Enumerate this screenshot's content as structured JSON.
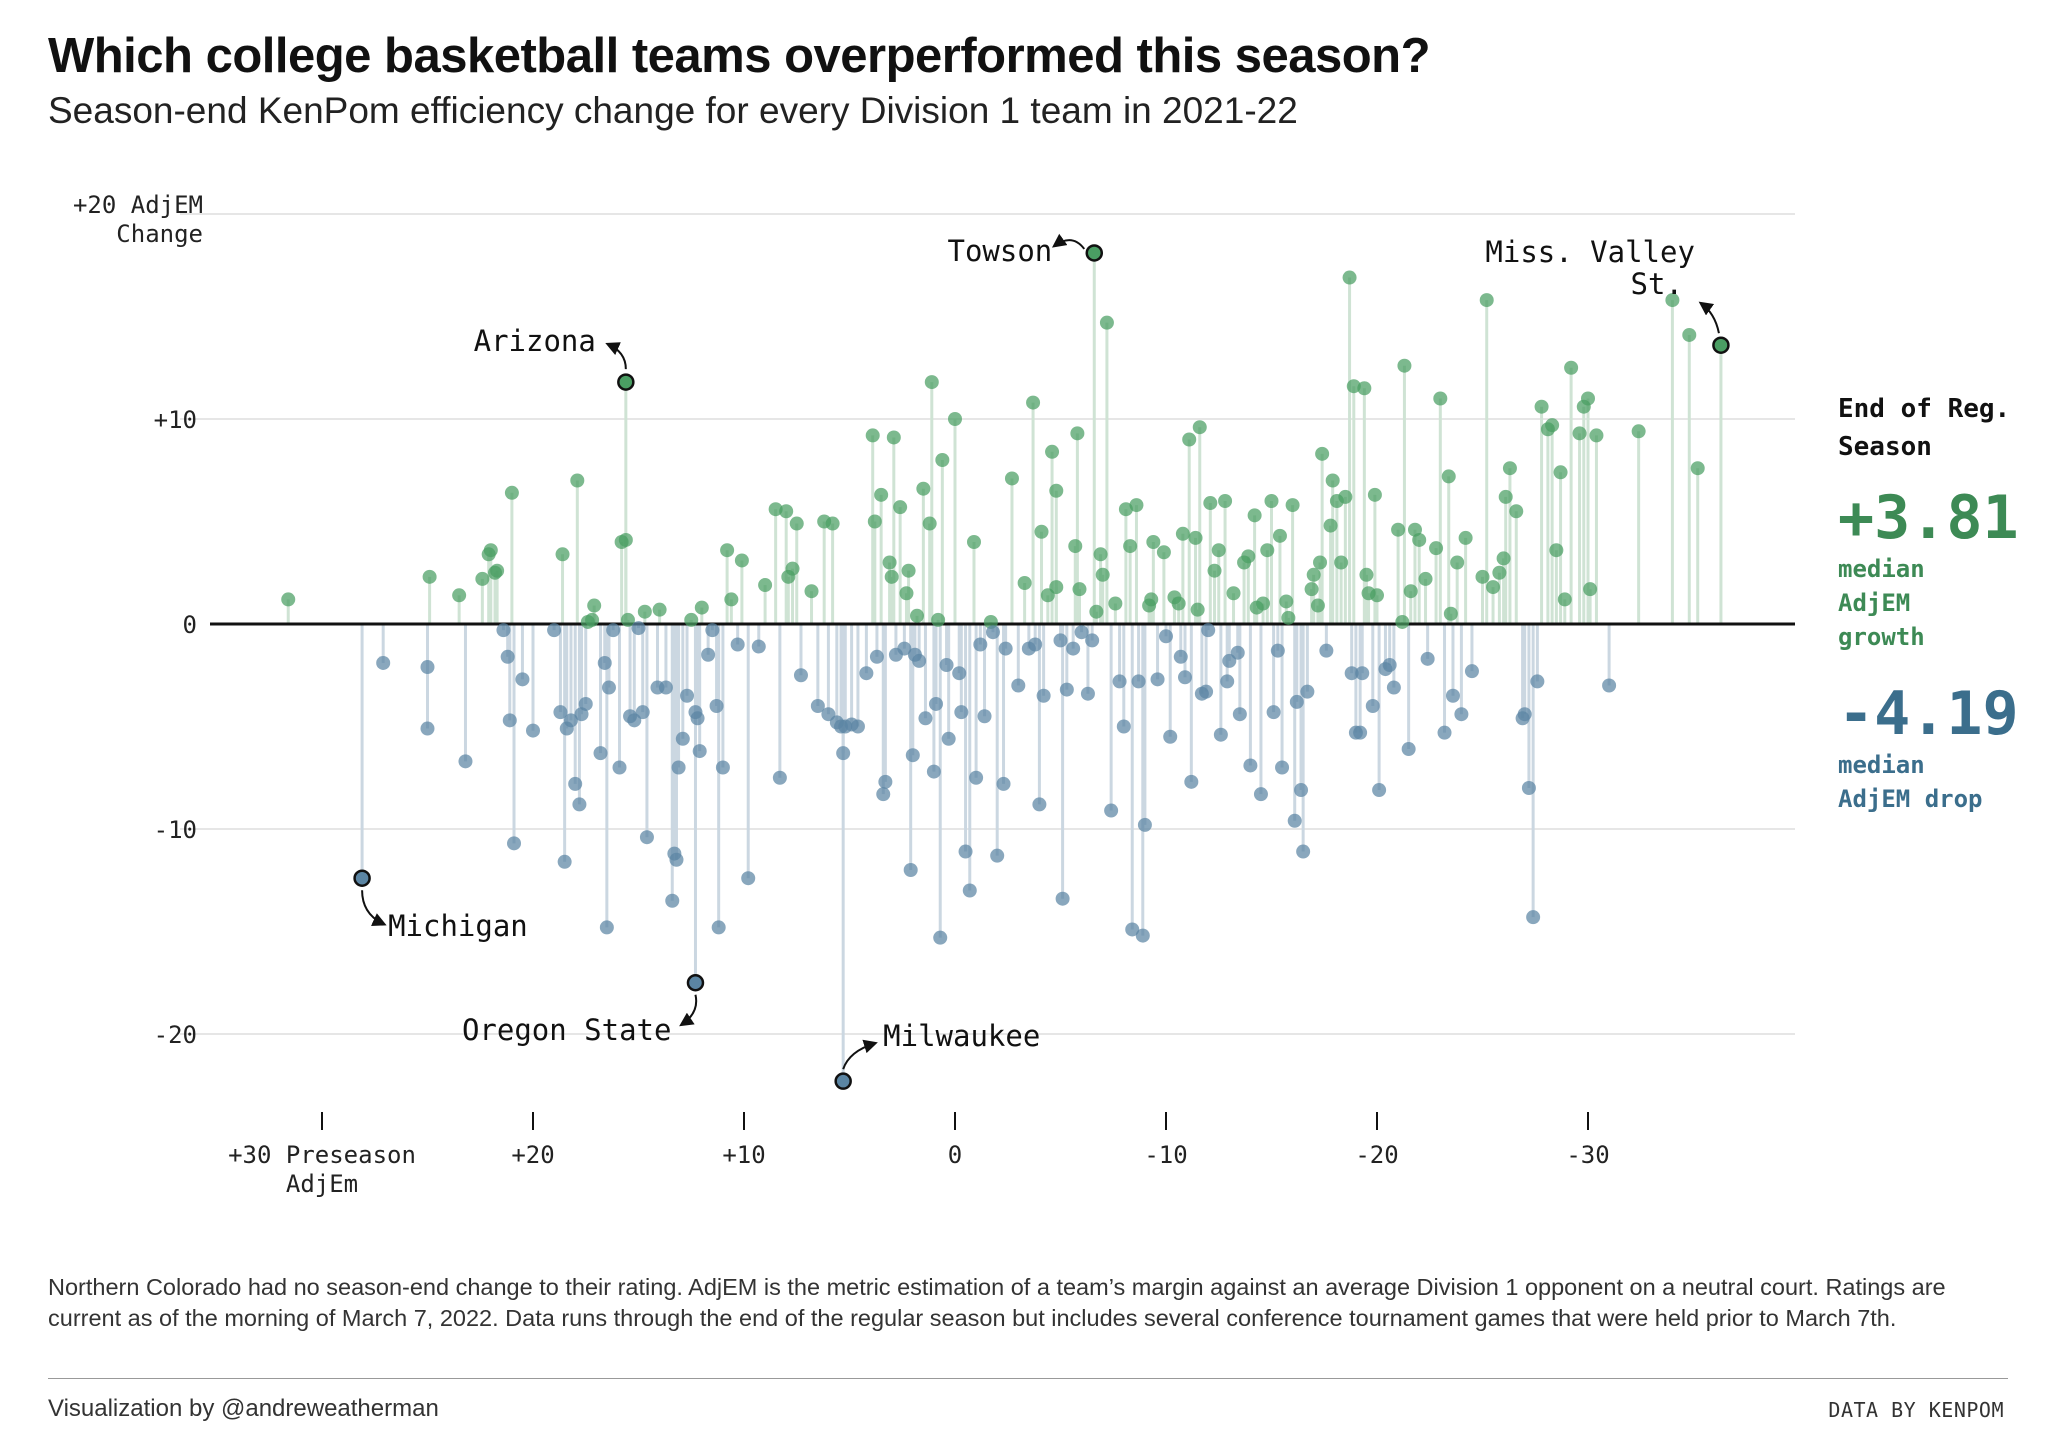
{
  "title": "Which college basketball teams overperformed this season?",
  "subtitle": "Season-end KenPom efficiency change for every Division 1 team in 2021-22",
  "colors": {
    "growth": "#4a9e63",
    "drop": "#5b85a3",
    "growth_stem": "#cfe3d4",
    "drop_stem": "#cbd7e1",
    "label_growth": "#3d8a55",
    "label_drop": "#3b6e8c"
  },
  "side_panel": {
    "heading": "End of Reg. Season",
    "growth_value": "+3.81",
    "growth_label": "median AdjEM growth",
    "drop_value": "-4.19",
    "drop_label": "median AdjEM drop"
  },
  "footnote": "Northern Colorado had no season-end change to their rating. AdjEM is the metric estimation of a team’s margin against an average Division 1 opponent on a neutral court. Ratings are current as of the morning of March 7, 2022.  Data runs through the end of the regular season but includes several conference tournament games that were held prior to March 7th.",
  "credit": "Visualization by @andreweatherman",
  "source": "DATA BY KENPOM",
  "chart_data": {
    "type": "scatter",
    "x_axis": {
      "label": "Preseason AdjEm",
      "range": [
        36,
        -37
      ],
      "reversed": true,
      "ticks": [
        {
          "value": 30,
          "label": "+30 Preseason AdjEm"
        },
        {
          "value": 20,
          "label": "+20"
        },
        {
          "value": 10,
          "label": "+10"
        },
        {
          "value": 0,
          "label": "0"
        },
        {
          "value": -10,
          "label": "-10"
        },
        {
          "value": -20,
          "label": "-20"
        },
        {
          "value": -30,
          "label": "-30"
        }
      ]
    },
    "y_axis": {
      "label": "AdjEM Change",
      "range": [
        -24,
        21
      ],
      "ticks": [
        {
          "value": 20,
          "label": "+20 AdjEM Change"
        },
        {
          "value": 10,
          "label": "+10"
        },
        {
          "value": 0,
          "label": "0"
        },
        {
          "value": -10,
          "label": "-10"
        },
        {
          "value": -20,
          "label": "-20"
        }
      ]
    },
    "grid": true,
    "highlighted": [
      {
        "name": "Towson",
        "x": -6.6,
        "y": 18.1
      },
      {
        "name": "Miss. Valley St.",
        "x": -36.3,
        "y": 13.6
      },
      {
        "name": "Arizona",
        "x": 15.6,
        "y": 11.8
      },
      {
        "name": "Michigan",
        "x": 28.1,
        "y": -12.4
      },
      {
        "name": "Oregon State",
        "x": 12.3,
        "y": -17.5
      },
      {
        "name": "Milwaukee",
        "x": 5.3,
        "y": -22.3
      }
    ],
    "points": [
      [
        31.6,
        1.2
      ],
      [
        27.1,
        -1.9
      ],
      [
        25.0,
        -2.1
      ],
      [
        25.0,
        -5.1
      ],
      [
        24.9,
        2.3
      ],
      [
        23.5,
        1.4
      ],
      [
        23.2,
        -6.7
      ],
      [
        22.4,
        2.2
      ],
      [
        22.1,
        3.4
      ],
      [
        22.0,
        3.6
      ],
      [
        21.8,
        2.5
      ],
      [
        21.7,
        2.6
      ],
      [
        21.4,
        -0.3
      ],
      [
        21.2,
        -1.6
      ],
      [
        21.1,
        -4.7
      ],
      [
        21.0,
        6.4
      ],
      [
        20.9,
        -10.7
      ],
      [
        20.5,
        -2.7
      ],
      [
        20.0,
        -5.2
      ],
      [
        19.0,
        -0.3
      ],
      [
        18.7,
        -4.3
      ],
      [
        18.6,
        3.4
      ],
      [
        18.5,
        -11.6
      ],
      [
        18.4,
        -5.1
      ],
      [
        18.2,
        -4.7
      ],
      [
        17.9,
        7.0
      ],
      [
        18.0,
        -7.8
      ],
      [
        17.8,
        -8.8
      ],
      [
        17.7,
        -4.4
      ],
      [
        17.5,
        -3.9
      ],
      [
        17.4,
        0.1
      ],
      [
        17.2,
        0.2
      ],
      [
        17.1,
        0.9
      ],
      [
        16.8,
        -6.3
      ],
      [
        16.6,
        -1.9
      ],
      [
        16.5,
        -14.8
      ],
      [
        16.4,
        -3.1
      ],
      [
        16.2,
        -0.3
      ],
      [
        15.9,
        -7.0
      ],
      [
        15.8,
        4.0
      ],
      [
        15.6,
        4.1
      ],
      [
        15.5,
        0.2
      ],
      [
        15.4,
        -4.5
      ],
      [
        15.2,
        -4.7
      ],
      [
        15.0,
        -0.2
      ],
      [
        14.8,
        -4.3
      ],
      [
        14.7,
        0.6
      ],
      [
        14.6,
        -10.4
      ],
      [
        14.1,
        -3.1
      ],
      [
        14.0,
        0.7
      ],
      [
        13.7,
        -3.1
      ],
      [
        13.4,
        -13.5
      ],
      [
        13.3,
        -11.2
      ],
      [
        13.2,
        -11.5
      ],
      [
        13.1,
        -7.0
      ],
      [
        12.9,
        -5.6
      ],
      [
        12.7,
        -3.5
      ],
      [
        12.5,
        0.2
      ],
      [
        12.3,
        -4.3
      ],
      [
        12.2,
        -4.6
      ],
      [
        12.1,
        -6.2
      ],
      [
        12.0,
        0.8
      ],
      [
        11.7,
        -1.5
      ],
      [
        11.5,
        -0.3
      ],
      [
        11.3,
        -4.0
      ],
      [
        11.2,
        -14.8
      ],
      [
        11.0,
        -7.0
      ],
      [
        10.8,
        3.6
      ],
      [
        10.6,
        1.2
      ],
      [
        10.3,
        -1.0
      ],
      [
        10.1,
        3.1
      ],
      [
        9.8,
        -12.4
      ],
      [
        9.3,
        -1.1
      ],
      [
        9.0,
        1.9
      ],
      [
        8.5,
        5.6
      ],
      [
        8.3,
        -7.5
      ],
      [
        8.0,
        5.5
      ],
      [
        7.9,
        2.3
      ],
      [
        7.7,
        2.7
      ],
      [
        7.5,
        4.9
      ],
      [
        7.3,
        -2.5
      ],
      [
        6.8,
        1.6
      ],
      [
        6.5,
        -4.0
      ],
      [
        6.2,
        5.0
      ],
      [
        6.0,
        -4.4
      ],
      [
        5.8,
        4.9
      ],
      [
        5.6,
        -4.8
      ],
      [
        5.4,
        -5.0
      ],
      [
        5.3,
        -6.3
      ],
      [
        5.2,
        -5.0
      ],
      [
        4.9,
        -4.9
      ],
      [
        4.6,
        -5.0
      ],
      [
        4.2,
        -2.4
      ],
      [
        3.9,
        9.2
      ],
      [
        3.8,
        5.0
      ],
      [
        3.7,
        -1.6
      ],
      [
        3.5,
        6.3
      ],
      [
        3.4,
        -8.3
      ],
      [
        3.3,
        -7.7
      ],
      [
        3.1,
        3.0
      ],
      [
        3.0,
        2.3
      ],
      [
        2.9,
        9.1
      ],
      [
        2.8,
        -1.5
      ],
      [
        2.6,
        5.7
      ],
      [
        2.4,
        -1.2
      ],
      [
        2.3,
        1.5
      ],
      [
        2.2,
        2.6
      ],
      [
        2.1,
        -12.0
      ],
      [
        2.0,
        -6.4
      ],
      [
        1.9,
        -1.5
      ],
      [
        1.8,
        0.4
      ],
      [
        1.7,
        -1.8
      ],
      [
        1.5,
        6.6
      ],
      [
        1.4,
        -4.6
      ],
      [
        1.2,
        4.9
      ],
      [
        1.1,
        11.8
      ],
      [
        1.0,
        -7.2
      ],
      [
        0.9,
        -3.9
      ],
      [
        0.8,
        0.2
      ],
      [
        0.7,
        -15.3
      ],
      [
        0.6,
        8.0
      ],
      [
        0.4,
        -2.0
      ],
      [
        0.3,
        -5.6
      ],
      [
        0.0,
        10.0
      ],
      [
        -0.2,
        -2.4
      ],
      [
        -0.3,
        -4.3
      ],
      [
        -0.5,
        -11.1
      ],
      [
        -0.7,
        -13.0
      ],
      [
        -0.9,
        4.0
      ],
      [
        -1.0,
        -7.5
      ],
      [
        -1.2,
        -1.0
      ],
      [
        -1.4,
        -4.5
      ],
      [
        -1.7,
        0.1
      ],
      [
        -1.8,
        -0.4
      ],
      [
        -2.0,
        -11.3
      ],
      [
        -2.3,
        -7.8
      ],
      [
        -2.4,
        -1.2
      ],
      [
        -2.7,
        7.1
      ],
      [
        -3.0,
        -3.0
      ],
      [
        -3.3,
        2.0
      ],
      [
        -3.5,
        -1.2
      ],
      [
        -3.7,
        10.8
      ],
      [
        -3.8,
        -1.0
      ],
      [
        -4.0,
        -8.8
      ],
      [
        -4.1,
        4.5
      ],
      [
        -4.2,
        -3.5
      ],
      [
        -4.4,
        1.4
      ],
      [
        -4.6,
        8.4
      ],
      [
        -4.8,
        1.8
      ],
      [
        -4.8,
        6.5
      ],
      [
        -5.0,
        -0.8
      ],
      [
        -5.1,
        -13.4
      ],
      [
        -5.3,
        -3.2
      ],
      [
        -5.6,
        -1.2
      ],
      [
        -5.7,
        3.8
      ],
      [
        -5.8,
        9.3
      ],
      [
        -5.9,
        1.7
      ],
      [
        -6.0,
        -0.4
      ],
      [
        -6.3,
        -3.4
      ],
      [
        -6.5,
        -0.8
      ],
      [
        -6.7,
        0.6
      ],
      [
        -6.9,
        3.4
      ],
      [
        -7.0,
        2.4
      ],
      [
        -7.2,
        14.7
      ],
      [
        -7.4,
        -9.1
      ],
      [
        -7.6,
        1.0
      ],
      [
        -7.8,
        -2.8
      ],
      [
        -8.0,
        -5.0
      ],
      [
        -8.1,
        5.6
      ],
      [
        -8.3,
        3.8
      ],
      [
        -8.4,
        -14.9
      ],
      [
        -8.6,
        5.8
      ],
      [
        -8.7,
        -2.8
      ],
      [
        -8.9,
        -15.2
      ],
      [
        -9.0,
        -9.8
      ],
      [
        -9.2,
        0.9
      ],
      [
        -9.3,
        1.2
      ],
      [
        -9.4,
        4.0
      ],
      [
        -9.6,
        -2.7
      ],
      [
        -9.9,
        3.5
      ],
      [
        -10.0,
        -0.6
      ],
      [
        -10.2,
        -5.5
      ],
      [
        -10.4,
        1.3
      ],
      [
        -10.6,
        1.0
      ],
      [
        -10.7,
        -1.6
      ],
      [
        -10.8,
        4.4
      ],
      [
        -10.9,
        -2.6
      ],
      [
        -11.1,
        9.0
      ],
      [
        -11.2,
        -7.7
      ],
      [
        -11.4,
        4.2
      ],
      [
        -11.5,
        0.7
      ],
      [
        -11.6,
        9.6
      ],
      [
        -11.7,
        -3.4
      ],
      [
        -11.9,
        -3.3
      ],
      [
        -12.0,
        -0.3
      ],
      [
        -12.1,
        5.9
      ],
      [
        -12.3,
        2.6
      ],
      [
        -12.5,
        3.6
      ],
      [
        -12.6,
        -5.4
      ],
      [
        -12.8,
        6.0
      ],
      [
        -12.9,
        -2.8
      ],
      [
        -13.0,
        -1.8
      ],
      [
        -13.2,
        1.5
      ],
      [
        -13.4,
        -1.4
      ],
      [
        -13.5,
        -4.4
      ],
      [
        -13.7,
        3.0
      ],
      [
        -13.9,
        3.3
      ],
      [
        -14.0,
        -6.9
      ],
      [
        -14.2,
        5.3
      ],
      [
        -14.3,
        0.8
      ],
      [
        -14.5,
        -8.3
      ],
      [
        -14.6,
        1.0
      ],
      [
        -14.8,
        3.6
      ],
      [
        -15.0,
        6.0
      ],
      [
        -15.1,
        -4.3
      ],
      [
        -15.3,
        -1.3
      ],
      [
        -15.4,
        4.3
      ],
      [
        -15.5,
        -7.0
      ],
      [
        -15.7,
        1.1
      ],
      [
        -15.8,
        0.3
      ],
      [
        -16.0,
        5.8
      ],
      [
        -16.1,
        -9.6
      ],
      [
        -16.2,
        -3.8
      ],
      [
        -16.4,
        -8.1
      ],
      [
        -16.5,
        -11.1
      ],
      [
        -16.7,
        -3.3
      ],
      [
        -16.9,
        1.7
      ],
      [
        -17.0,
        2.4
      ],
      [
        -17.2,
        0.9
      ],
      [
        -17.3,
        3.0
      ],
      [
        -17.4,
        8.3
      ],
      [
        -17.6,
        -1.3
      ],
      [
        -17.8,
        4.8
      ],
      [
        -17.9,
        7.0
      ],
      [
        -18.1,
        6.0
      ],
      [
        -18.3,
        3.0
      ],
      [
        -18.5,
        6.2
      ],
      [
        -18.7,
        16.9
      ],
      [
        -18.8,
        -2.4
      ],
      [
        -18.9,
        11.6
      ],
      [
        -19.0,
        -5.3
      ],
      [
        -19.2,
        -5.3
      ],
      [
        -19.3,
        -2.4
      ],
      [
        -19.4,
        11.5
      ],
      [
        -19.5,
        2.4
      ],
      [
        -19.6,
        1.5
      ],
      [
        -19.8,
        -4.0
      ],
      [
        -19.9,
        6.3
      ],
      [
        -20.0,
        1.4
      ],
      [
        -20.1,
        -8.1
      ],
      [
        -20.4,
        -2.2
      ],
      [
        -20.6,
        -2.0
      ],
      [
        -20.8,
        -3.1
      ],
      [
        -21.0,
        4.6
      ],
      [
        -21.2,
        0.1
      ],
      [
        -21.3,
        12.6
      ],
      [
        -21.5,
        -6.1
      ],
      [
        -21.6,
        1.6
      ],
      [
        -21.8,
        4.6
      ],
      [
        -22.0,
        4.1
      ],
      [
        -22.3,
        2.2
      ],
      [
        -22.4,
        -1.7
      ],
      [
        -22.8,
        3.7
      ],
      [
        -23.0,
        11.0
      ],
      [
        -23.2,
        -5.3
      ],
      [
        -23.4,
        7.2
      ],
      [
        -23.5,
        0.5
      ],
      [
        -23.6,
        -3.5
      ],
      [
        -23.8,
        3.0
      ],
      [
        -24.0,
        -4.4
      ],
      [
        -24.2,
        4.2
      ],
      [
        -24.5,
        -2.3
      ],
      [
        -25.0,
        2.3
      ],
      [
        -25.2,
        15.8
      ],
      [
        -25.5,
        1.8
      ],
      [
        -25.8,
        2.5
      ],
      [
        -26.0,
        3.2
      ],
      [
        -26.1,
        6.2
      ],
      [
        -26.3,
        7.6
      ],
      [
        -26.6,
        5.5
      ],
      [
        -26.9,
        -4.6
      ],
      [
        -27.0,
        -4.4
      ],
      [
        -27.2,
        -8.0
      ],
      [
        -27.4,
        -14.3
      ],
      [
        -27.6,
        -2.8
      ],
      [
        -27.8,
        10.6
      ],
      [
        -28.1,
        9.5
      ],
      [
        -28.3,
        9.7
      ],
      [
        -28.5,
        3.6
      ],
      [
        -28.7,
        7.4
      ],
      [
        -28.9,
        1.2
      ],
      [
        -29.2,
        12.5
      ],
      [
        -29.6,
        9.3
      ],
      [
        -29.8,
        10.6
      ],
      [
        -30.0,
        11.0
      ],
      [
        -30.1,
        1.7
      ],
      [
        -30.4,
        9.2
      ],
      [
        -31.0,
        -3.0
      ],
      [
        -32.4,
        9.4
      ],
      [
        -34.0,
        15.8
      ],
      [
        -35.2,
        7.6
      ],
      [
        -34.8,
        14.1
      ]
    ]
  }
}
